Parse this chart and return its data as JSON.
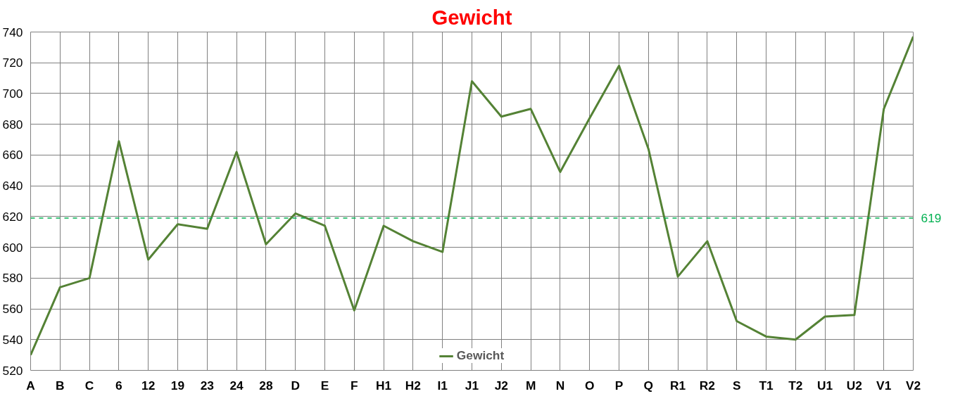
{
  "chart_data": {
    "type": "line",
    "title": "Gewicht",
    "categories": [
      "A",
      "B",
      "C",
      "6",
      "12",
      "19",
      "23",
      "24",
      "28",
      "D",
      "E",
      "F",
      "H1",
      "H2",
      "I1",
      "J1",
      "J2",
      "M",
      "N",
      "O",
      "P",
      "Q",
      "R1",
      "R2",
      "S",
      "T1",
      "T2",
      "U1",
      "U2",
      "V1",
      "V2"
    ],
    "series": [
      {
        "name": "Gewicht",
        "color": "#548235",
        "values": [
          530,
          574,
          580,
          669,
          592,
          615,
          612,
          662,
          602,
          622,
          614,
          559,
          614,
          604,
          597,
          708,
          685,
          690,
          649,
          684,
          718,
          664,
          581,
          604,
          552,
          542,
          540,
          555,
          556,
          690,
          737
        ]
      }
    ],
    "ylim": [
      520,
      740
    ],
    "yticks": [
      520,
      540,
      560,
      580,
      600,
      620,
      640,
      660,
      680,
      700,
      720,
      740
    ],
    "ref_lines": [
      {
        "axis": "y",
        "value": 619,
        "label": "619",
        "color": "#00b050",
        "line_style": "dashed"
      }
    ],
    "grid": true,
    "legend": "bottom",
    "marker": "none",
    "line_style": "solid"
  }
}
